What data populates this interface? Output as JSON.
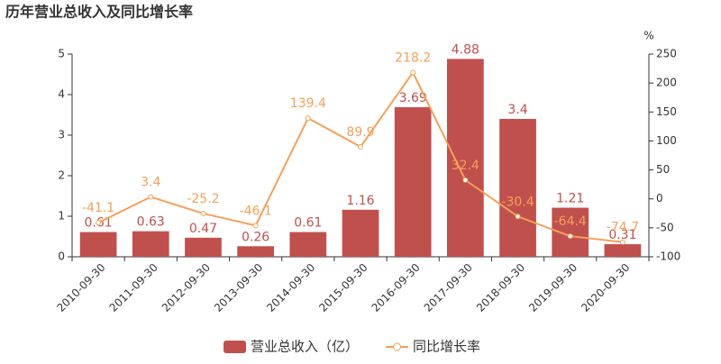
{
  "chart_data": {
    "type": "bar",
    "title": "历年营业总收入及同比增长率",
    "categories": [
      "2010-09-30",
      "2011-09-30",
      "2012-09-30",
      "2013-09-30",
      "2014-09-30",
      "2015-09-30",
      "2016-09-30",
      "2017-09-30",
      "2018-09-30",
      "2019-09-30",
      "2020-09-30"
    ],
    "series": [
      {
        "name": "营业总收入（亿）",
        "type": "bar",
        "color": "#c0504d",
        "values": [
          0.61,
          0.63,
          0.47,
          0.26,
          0.61,
          1.16,
          3.69,
          4.88,
          3.4,
          1.21,
          0.31
        ]
      },
      {
        "name": "同比增长率",
        "type": "line",
        "axis": "y2",
        "color": "#f4a05a",
        "values": [
          -41.1,
          3.4,
          -25.2,
          -46.1,
          139.4,
          89.9,
          218.2,
          32.4,
          -30.4,
          -64.4,
          -74.7
        ]
      }
    ],
    "ylim": [
      0,
      5
    ],
    "yticks": [
      0,
      1,
      2,
      3,
      4,
      5
    ],
    "y2label": "%",
    "y2lim": [
      -100,
      250
    ],
    "y2ticks": [
      -100,
      -50,
      0,
      50,
      100,
      150,
      200,
      250
    ],
    "legend": "bottom"
  }
}
